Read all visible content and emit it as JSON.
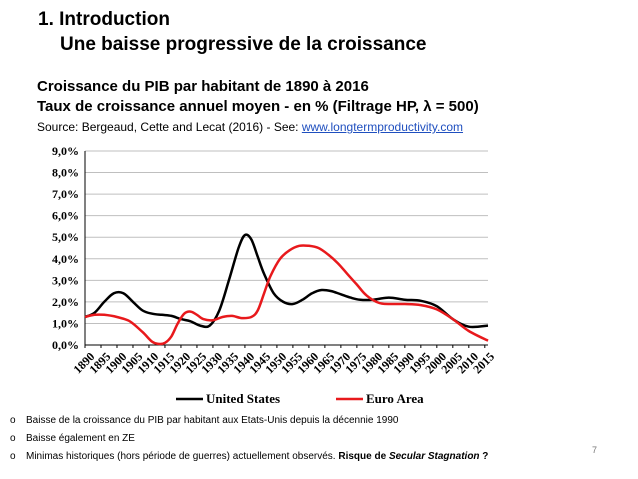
{
  "slide": {
    "heading": "1.  Introduction",
    "subheading": "Une baisse progressive de la croissance",
    "title_line1": "Croissance du PIB par habitant de 1890 à 2016",
    "title_line2": "Taux de croissance annuel moyen - en % (Filtrage HP, λ = 500)",
    "source_prefix": "Source: Bergeaud, Cette and Lecat (2016) - See: ",
    "source_link": "www.longtermproductivity.com",
    "bullets": [
      {
        "marker": "o",
        "text": "Baisse de la croissance du PIB par habitant aux Etats-Unis depuis la décennie 1990"
      },
      {
        "marker": "o",
        "text": "Baisse également en ZE"
      },
      {
        "marker": "o",
        "text": "Minimas historiques (hors période de guerres) actuellement observés. ",
        "bold_prefix": "Risque de ",
        "bold_italic": "Secular Stagnation",
        "bold_suffix": " ?"
      }
    ],
    "page_number": "7"
  },
  "chart_data": {
    "type": "line",
    "ylim": [
      0,
      9
    ],
    "y_ticks": [
      "0,0%",
      "1,0%",
      "2,0%",
      "3,0%",
      "4,0%",
      "5,0%",
      "6,0%",
      "7,0%",
      "8,0%",
      "9,0%"
    ],
    "x_ticks": [
      "1890",
      "1895",
      "1900",
      "1905",
      "1910",
      "1915",
      "1920",
      "1925",
      "1930",
      "1935",
      "1940",
      "1945",
      "1950",
      "1955",
      "1960",
      "1965",
      "1970",
      "1975",
      "1980",
      "1985",
      "1990",
      "1995",
      "2000",
      "2005",
      "2010",
      "2015"
    ],
    "xlim": [
      1890,
      2016
    ],
    "grid": true,
    "legend_position": "bottom",
    "series": [
      {
        "name": "United States",
        "color": "#000000",
        "x": [
          1890,
          1893,
          1896,
          1899,
          1902,
          1905,
          1908,
          1911,
          1914,
          1917,
          1920,
          1923,
          1926,
          1929,
          1932,
          1935,
          1938,
          1940,
          1942,
          1944,
          1946,
          1949,
          1952,
          1955,
          1958,
          1961,
          1964,
          1967,
          1970,
          1973,
          1976,
          1980,
          1985,
          1990,
          1995,
          2000,
          2005,
          2010,
          2016
        ],
        "y": [
          1.3,
          1.5,
          2.0,
          2.4,
          2.4,
          2.0,
          1.6,
          1.45,
          1.4,
          1.35,
          1.2,
          1.1,
          0.9,
          0.9,
          1.6,
          3.0,
          4.5,
          5.1,
          4.9,
          4.1,
          3.3,
          2.4,
          2.0,
          1.9,
          2.1,
          2.4,
          2.55,
          2.5,
          2.35,
          2.2,
          2.1,
          2.1,
          2.2,
          2.1,
          2.05,
          1.8,
          1.2,
          0.85,
          0.9
        ]
      },
      {
        "name": "Euro Area",
        "color": "#e8191c",
        "x": [
          1890,
          1893,
          1896,
          1900,
          1904,
          1908,
          1911,
          1913,
          1915,
          1917,
          1919,
          1921,
          1923,
          1925,
          1927,
          1930,
          1933,
          1936,
          1939,
          1942,
          1944,
          1946,
          1948,
          1951,
          1954,
          1957,
          1960,
          1963,
          1966,
          1969,
          1972,
          1975,
          1978,
          1982,
          1986,
          1990,
          1995,
          2000,
          2005,
          2010,
          2016
        ],
        "y": [
          1.3,
          1.4,
          1.4,
          1.3,
          1.1,
          0.6,
          0.15,
          0.05,
          0.1,
          0.4,
          1.0,
          1.45,
          1.55,
          1.4,
          1.2,
          1.15,
          1.3,
          1.35,
          1.25,
          1.3,
          1.6,
          2.4,
          3.2,
          4.0,
          4.4,
          4.6,
          4.6,
          4.5,
          4.2,
          3.8,
          3.3,
          2.8,
          2.3,
          1.95,
          1.9,
          1.9,
          1.85,
          1.65,
          1.2,
          0.65,
          0.2
        ]
      }
    ]
  }
}
